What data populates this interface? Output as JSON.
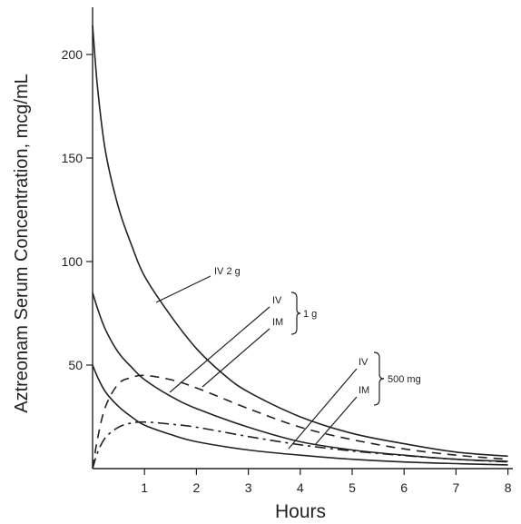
{
  "chart_data": {
    "type": "line",
    "title": "",
    "xlabel": "Hours",
    "ylabel": "Aztreonam Serum Concentration, mcg/mL",
    "xlim": [
      0,
      8.25
    ],
    "ylim": [
      0,
      225
    ],
    "x_ticks": [
      1,
      2,
      3,
      4,
      5,
      6,
      7,
      8
    ],
    "y_ticks": [
      50,
      100,
      150,
      200
    ],
    "grid": false,
    "legend": "none",
    "series": [
      {
        "name": "IV 2 g",
        "style": "solid",
        "x": [
          0,
          0.1,
          0.25,
          0.5,
          0.75,
          1,
          1.5,
          2,
          2.5,
          3,
          4,
          5,
          6,
          7,
          8
        ],
        "y": [
          214,
          183,
          153,
          126,
          108,
          93,
          74,
          58,
          46,
          37,
          25,
          17,
          12,
          8,
          6
        ]
      },
      {
        "name": "IV 1 g",
        "style": "solid",
        "x": [
          0,
          0.1,
          0.25,
          0.5,
          0.75,
          1,
          1.5,
          2,
          3,
          4,
          5,
          6,
          7,
          8
        ],
        "y": [
          85,
          77,
          67,
          56,
          49,
          43,
          35,
          29,
          20,
          13,
          9,
          6.5,
          4.5,
          3.5
        ]
      },
      {
        "name": "IM 1 g",
        "style": "dashed",
        "x": [
          0,
          0.1,
          0.25,
          0.5,
          0.75,
          1,
          1.5,
          2,
          3,
          4,
          5,
          6,
          7,
          8
        ],
        "y": [
          0,
          15,
          30,
          41,
          44,
          45,
          43,
          39,
          29,
          20,
          14,
          9.5,
          6.5,
          4.5
        ]
      },
      {
        "name": "IV 500 mg",
        "style": "solid",
        "x": [
          0,
          0.1,
          0.25,
          0.5,
          0.75,
          1,
          1.5,
          2,
          3,
          4,
          5,
          6,
          7,
          8
        ],
        "y": [
          50,
          44,
          37,
          30,
          25,
          21,
          16.5,
          13,
          9,
          6.5,
          4.5,
          3.2,
          2.4,
          1.8
        ]
      },
      {
        "name": "IM 500 mg",
        "style": "dashdot",
        "x": [
          0,
          0.1,
          0.25,
          0.5,
          0.75,
          1,
          1.5,
          2,
          3,
          4,
          5,
          6,
          7,
          8
        ],
        "y": [
          0,
          8,
          15,
          20,
          22,
          22.5,
          21.5,
          20,
          15.5,
          11.5,
          8.5,
          6.3,
          4.5,
          3.2
        ]
      }
    ],
    "annotations": {
      "iv2g": "IV 2 g",
      "iv": "IV",
      "im": "IM",
      "group_1g": "1 g",
      "group_500mg": "500 mg"
    },
    "colors": {
      "ink": "#222222",
      "background": "#ffffff"
    }
  }
}
